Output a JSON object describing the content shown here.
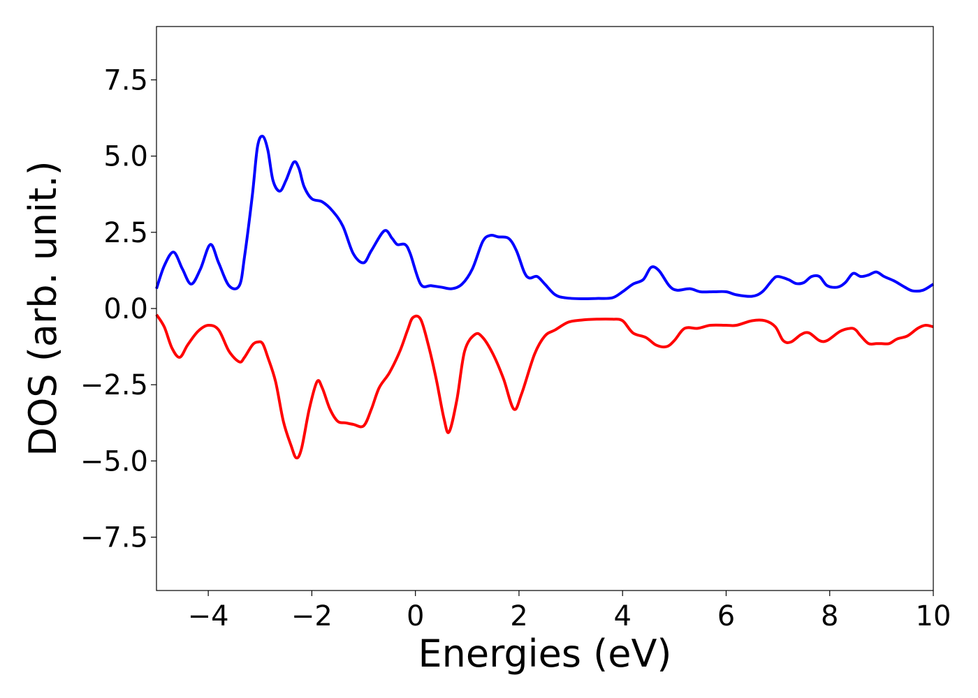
{
  "chart_data": {
    "type": "line",
    "title": "",
    "xlabel": "Energies (eV)",
    "ylabel": "DOS (arb. unit.)",
    "xlim": [
      -5,
      10
    ],
    "ylim": [
      -9.25,
      9.25
    ],
    "xticks": [
      -4,
      -2,
      0,
      2,
      4,
      6,
      8,
      10
    ],
    "xtick_labels": [
      "−4",
      "−2",
      "0",
      "2",
      "4",
      "6",
      "8",
      "10"
    ],
    "yticks": [
      7.5,
      5.0,
      2.5,
      0.0,
      -2.5,
      -5.0,
      -7.5
    ],
    "ytick_labels": [
      "7.5",
      "5.0",
      "2.5",
      "0.0",
      "−2.5",
      "−5.0",
      "−7.5"
    ],
    "grid": false,
    "legend": "none",
    "series": [
      {
        "color": "#0000ff",
        "x": [
          -5.0,
          -4.85,
          -4.67,
          -4.5,
          -4.33,
          -4.15,
          -3.96,
          -3.8,
          -3.6,
          -3.4,
          -3.3,
          -3.15,
          -3.05,
          -2.95,
          -2.85,
          -2.75,
          -2.62,
          -2.5,
          -2.35,
          -2.25,
          -2.15,
          -2.0,
          -1.8,
          -1.6,
          -1.4,
          -1.2,
          -1.0,
          -0.85,
          -0.6,
          -0.45,
          -0.35,
          -0.2,
          -0.1,
          0.1,
          0.3,
          0.5,
          0.7,
          0.9,
          1.1,
          1.3,
          1.45,
          1.6,
          1.8,
          1.95,
          2.1,
          2.2,
          2.35,
          2.5,
          2.7,
          2.9,
          3.2,
          3.5,
          3.8,
          4.0,
          4.2,
          4.4,
          4.55,
          4.7,
          4.9,
          5.05,
          5.3,
          5.5,
          5.75,
          6.0,
          6.2,
          6.5,
          6.7,
          6.9,
          7.0,
          7.2,
          7.35,
          7.5,
          7.65,
          7.8,
          7.95,
          8.15,
          8.3,
          8.45,
          8.6,
          8.75,
          8.9,
          9.05,
          9.25,
          9.45,
          9.6,
          9.8,
          10.0
        ],
        "y": [
          0.65,
          1.4,
          1.85,
          1.3,
          0.8,
          1.3,
          2.1,
          1.5,
          0.75,
          0.75,
          1.7,
          3.7,
          5.3,
          5.65,
          5.2,
          4.2,
          3.85,
          4.2,
          4.8,
          4.6,
          4.0,
          3.6,
          3.5,
          3.2,
          2.7,
          1.8,
          1.5,
          1.9,
          2.55,
          2.3,
          2.1,
          2.1,
          1.8,
          0.8,
          0.75,
          0.7,
          0.65,
          0.8,
          1.3,
          2.2,
          2.4,
          2.35,
          2.3,
          1.9,
          1.2,
          1.0,
          1.05,
          0.8,
          0.45,
          0.35,
          0.32,
          0.33,
          0.35,
          0.55,
          0.8,
          0.95,
          1.35,
          1.25,
          0.75,
          0.6,
          0.65,
          0.55,
          0.55,
          0.55,
          0.45,
          0.4,
          0.55,
          0.95,
          1.05,
          0.95,
          0.82,
          0.85,
          1.05,
          1.05,
          0.75,
          0.7,
          0.85,
          1.15,
          1.05,
          1.1,
          1.2,
          1.05,
          0.9,
          0.7,
          0.58,
          0.6,
          0.8
        ]
      },
      {
        "color": "#ff0000",
        "x": [
          -5.0,
          -4.85,
          -4.7,
          -4.55,
          -4.4,
          -4.2,
          -4.0,
          -3.8,
          -3.6,
          -3.4,
          -3.3,
          -3.15,
          -3.05,
          -2.95,
          -2.85,
          -2.7,
          -2.55,
          -2.4,
          -2.3,
          -2.2,
          -2.05,
          -1.9,
          -1.8,
          -1.65,
          -1.5,
          -1.35,
          -1.2,
          -1.0,
          -0.85,
          -0.7,
          -0.5,
          -0.3,
          -0.15,
          -0.05,
          0.1,
          0.25,
          0.4,
          0.55,
          0.65,
          0.8,
          0.95,
          1.15,
          1.3,
          1.5,
          1.7,
          1.9,
          2.05,
          2.3,
          2.5,
          2.7,
          2.95,
          3.2,
          3.5,
          3.8,
          4.0,
          4.2,
          4.45,
          4.65,
          4.85,
          5.0,
          5.2,
          5.45,
          5.7,
          6.0,
          6.2,
          6.5,
          6.75,
          6.95,
          7.1,
          7.25,
          7.45,
          7.6,
          7.8,
          7.95,
          8.2,
          8.4,
          8.5,
          8.6,
          8.75,
          8.9,
          9.0,
          9.15,
          9.3,
          9.5,
          9.7,
          9.85,
          10.0
        ],
        "y": [
          -0.2,
          -0.6,
          -1.3,
          -1.6,
          -1.2,
          -0.75,
          -0.55,
          -0.7,
          -1.4,
          -1.75,
          -1.6,
          -1.2,
          -1.1,
          -1.15,
          -1.6,
          -2.4,
          -3.7,
          -4.5,
          -4.9,
          -4.6,
          -3.3,
          -2.4,
          -2.6,
          -3.3,
          -3.7,
          -3.75,
          -3.8,
          -3.85,
          -3.3,
          -2.6,
          -2.1,
          -1.4,
          -0.7,
          -0.3,
          -0.35,
          -1.2,
          -2.3,
          -3.6,
          -4.05,
          -3.0,
          -1.4,
          -0.85,
          -0.95,
          -1.5,
          -2.3,
          -3.3,
          -2.8,
          -1.5,
          -0.9,
          -0.7,
          -0.45,
          -0.38,
          -0.35,
          -0.35,
          -0.4,
          -0.8,
          -0.95,
          -1.2,
          -1.25,
          -1.05,
          -0.65,
          -0.65,
          -0.55,
          -0.55,
          -0.55,
          -0.4,
          -0.4,
          -0.6,
          -1.05,
          -1.1,
          -0.85,
          -0.8,
          -1.05,
          -1.05,
          -0.75,
          -0.65,
          -0.7,
          -0.9,
          -1.15,
          -1.15,
          -1.15,
          -1.15,
          -1.0,
          -0.9,
          -0.65,
          -0.55,
          -0.6
        ]
      }
    ]
  }
}
